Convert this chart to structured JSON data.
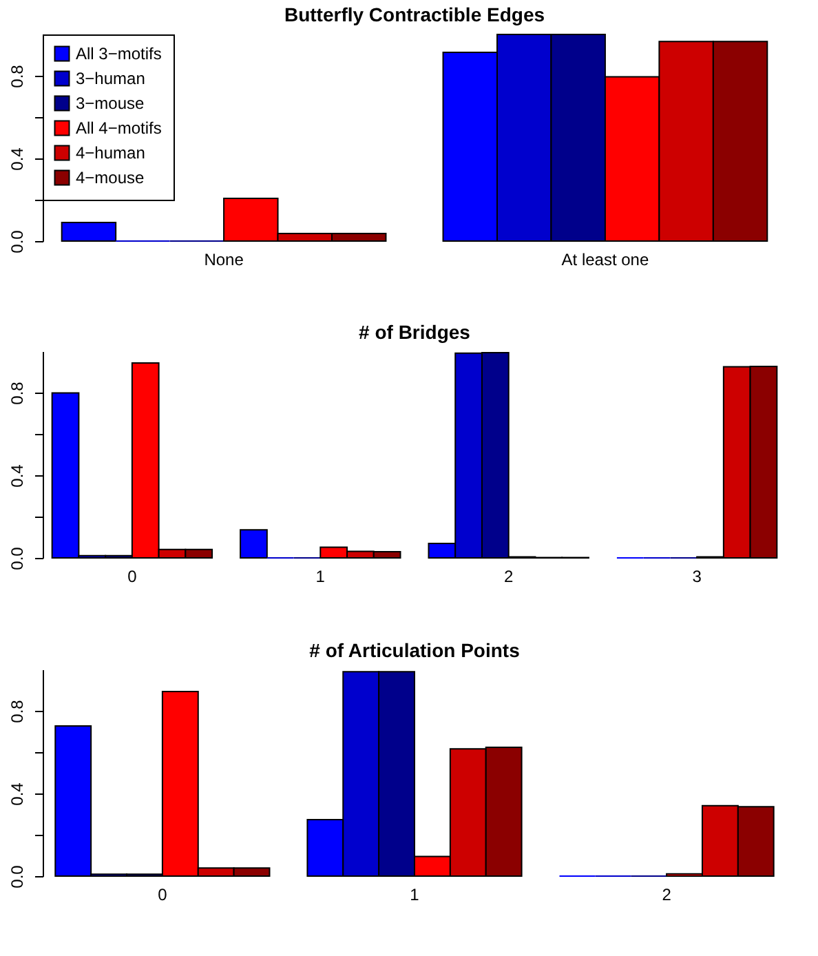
{
  "chart_data": [
    {
      "type": "bar",
      "title": "Butterfly Contractible Edges",
      "categories": [
        "None",
        "At least one"
      ],
      "ylim": [
        0,
        1
      ],
      "yticks": [
        {
          "value": 0,
          "label": "0.0"
        },
        {
          "value": 0.2,
          "label": null
        },
        {
          "value": 0.4,
          "label": "0.4"
        },
        {
          "value": 0.6,
          "label": null
        },
        {
          "value": 0.8,
          "label": "0.8"
        }
      ],
      "legend": "top left",
      "series": [
        {
          "name": "All 3−motifs",
          "color": "#0000ff",
          "values": [
            0.09,
            0.913
          ]
        },
        {
          "name": "3−human",
          "color": "#0000cd",
          "values": [
            0,
            1.0
          ]
        },
        {
          "name": "3−mouse",
          "color": "#00008b",
          "values": [
            0,
            1.0
          ]
        },
        {
          "name": "All 4−motifs",
          "color": "#ff0000",
          "values": [
            0.207,
            0.795
          ]
        },
        {
          "name": "4−human",
          "color": "#cd0000",
          "values": [
            0.037,
            0.966
          ]
        },
        {
          "name": "4−mouse",
          "color": "#8b0000",
          "values": [
            0.037,
            0.966
          ]
        }
      ]
    },
    {
      "type": "bar",
      "title": "# of Bridges",
      "categories": [
        "0",
        "1",
        "2",
        "3"
      ],
      "ylim": [
        0,
        1
      ],
      "yticks": [
        {
          "value": 0,
          "label": "0.0"
        },
        {
          "value": 0.2,
          "label": null
        },
        {
          "value": 0.4,
          "label": "0.4"
        },
        {
          "value": 0.6,
          "label": null
        },
        {
          "value": 0.8,
          "label": "0.8"
        }
      ],
      "series": [
        {
          "color": "#0000ff",
          "values": [
            0.798,
            0.136,
            0.07,
            0
          ]
        },
        {
          "color": "#0000cd",
          "values": [
            0.011,
            0,
            0.991,
            0
          ]
        },
        {
          "color": "#00008b",
          "values": [
            0.011,
            0,
            0.993,
            0
          ]
        },
        {
          "color": "#ff0000",
          "values": [
            0.943,
            0.052,
            0.005,
            0.005
          ]
        },
        {
          "color": "#cd0000",
          "values": [
            0.041,
            0.032,
            0.002,
            0.925
          ]
        },
        {
          "color": "#8b0000",
          "values": [
            0.041,
            0.03,
            0.002,
            0.927
          ]
        }
      ]
    },
    {
      "type": "bar",
      "title": "# of Articulation Points",
      "categories": [
        "0",
        "1",
        "2"
      ],
      "ylim": [
        0,
        1
      ],
      "yticks": [
        {
          "value": 0,
          "label": "0.0"
        },
        {
          "value": 0.2,
          "label": null
        },
        {
          "value": 0.4,
          "label": "0.4"
        },
        {
          "value": 0.6,
          "label": null
        },
        {
          "value": 0.8,
          "label": "0.8"
        }
      ],
      "series": [
        {
          "color": "#0000ff",
          "values": [
            0.727,
            0.273,
            0
          ]
        },
        {
          "color": "#0000cd",
          "values": [
            0.009,
            0.989,
            0
          ]
        },
        {
          "color": "#00008b",
          "values": [
            0.009,
            0.989,
            0
          ]
        },
        {
          "color": "#ff0000",
          "values": [
            0.893,
            0.095,
            0.011
          ]
        },
        {
          "color": "#cd0000",
          "values": [
            0.039,
            0.616,
            0.341
          ]
        },
        {
          "color": "#8b0000",
          "values": [
            0.039,
            0.623,
            0.336
          ]
        }
      ]
    }
  ]
}
